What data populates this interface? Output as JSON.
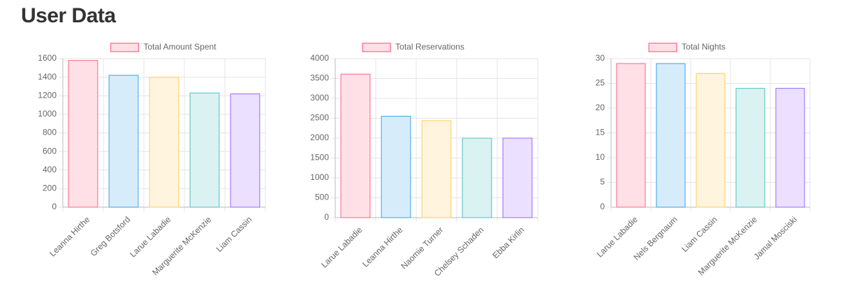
{
  "page": {
    "title": "User Data"
  },
  "chart_data": [
    {
      "type": "bar",
      "legend": "Total Amount Spent",
      "legend_position": "top",
      "categories": [
        "Leanna Hirthe",
        "Greg Botsford",
        "Larue Labadie",
        "Marguerite McKenzie",
        "Liam Cassin"
      ],
      "values": [
        1580,
        1420,
        1400,
        1230,
        1220
      ],
      "yticks": [
        0,
        200,
        400,
        600,
        800,
        1000,
        1200,
        1400,
        1600
      ],
      "ylim": [
        0,
        1600
      ],
      "grid": true
    },
    {
      "type": "bar",
      "legend": "Total Reservations",
      "legend_position": "top",
      "categories": [
        "Larue Labadie",
        "Leanna Hirthe",
        "Naomie Turner",
        "Chelsey Schaden",
        "Ebba Kirlin"
      ],
      "values": [
        3610,
        2550,
        2440,
        2000,
        2000
      ],
      "yticks": [
        0,
        500,
        1000,
        1500,
        2000,
        2500,
        3000,
        3500,
        4000
      ],
      "ylim": [
        0,
        4000
      ],
      "grid": true
    },
    {
      "type": "bar",
      "legend": "Total Nights",
      "legend_position": "top",
      "categories": [
        "Larue Labadie",
        "Nels Bergnaum",
        "Liam Cassin",
        "Marguerite McKenzie",
        "Jamal Mosciski"
      ],
      "values": [
        29,
        29,
        27,
        24,
        24
      ],
      "yticks": [
        0,
        5,
        10,
        15,
        20,
        25,
        30
      ],
      "ylim": [
        0,
        30
      ],
      "grid": true
    }
  ],
  "colors": {
    "fills": [
      "#ffe0e6",
      "#d7ecfb",
      "#fff4dd",
      "#dbf2f2",
      "#ebe0ff"
    ],
    "borders": [
      "#ff6384",
      "#36a2eb",
      "#ffcd56",
      "#4bc0c0",
      "#9966ff"
    ],
    "legend_fill": "#ffe0e6",
    "legend_border": "#ff6384",
    "grid": "#e5e5e5",
    "axis": "#bbbbbb",
    "text": "#666666"
  }
}
